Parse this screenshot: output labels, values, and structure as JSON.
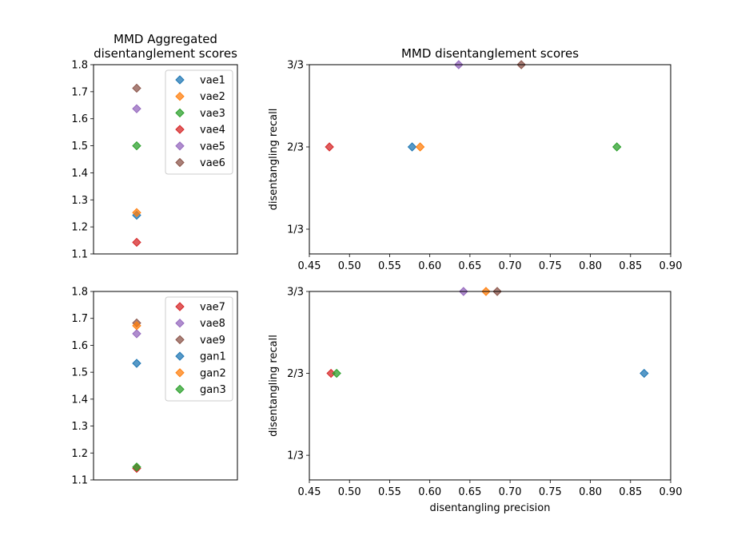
{
  "chart_data": [
    {
      "type": "scatter",
      "title": [
        "MMD Aggregated",
        "disentanglement scores"
      ],
      "xlabel": "",
      "ylabel": "",
      "ylim": [
        1.1,
        1.8
      ],
      "yticks": [
        1.1,
        1.2,
        1.3,
        1.4,
        1.5,
        1.6,
        1.7,
        1.8
      ],
      "ytick_labels": [
        "1.1",
        "1.2",
        "1.3",
        "1.4",
        "1.5",
        "1.6",
        "1.7",
        "1.8"
      ],
      "grid": false,
      "legend_position": "upper right",
      "series": [
        {
          "name": "vae1",
          "color": "#1f77b4",
          "x": [
            0
          ],
          "y": [
            1.243
          ]
        },
        {
          "name": "vae2",
          "color": "#ff7f0e",
          "x": [
            0
          ],
          "y": [
            1.253
          ]
        },
        {
          "name": "vae3",
          "color": "#2ca02c",
          "x": [
            0
          ],
          "y": [
            1.5
          ]
        },
        {
          "name": "vae4",
          "color": "#d62728",
          "x": [
            0
          ],
          "y": [
            1.143
          ]
        },
        {
          "name": "vae5",
          "color": "#9467bd",
          "x": [
            0
          ],
          "y": [
            1.637
          ]
        },
        {
          "name": "vae6",
          "color": "#8c564b",
          "x": [
            0
          ],
          "y": [
            1.713
          ]
        }
      ]
    },
    {
      "type": "scatter",
      "title": "MMD disentanglement scores",
      "xlabel": "",
      "ylabel": "disentangling recall",
      "xlim": [
        0.45,
        0.9
      ],
      "xticks": [
        0.45,
        0.5,
        0.55,
        0.6,
        0.65,
        0.7,
        0.75,
        0.8,
        0.85,
        0.9
      ],
      "xtick_labels": [
        "0.45",
        "0.50",
        "0.55",
        "0.60",
        "0.65",
        "0.70",
        "0.75",
        "0.80",
        "0.85",
        "0.90"
      ],
      "ylim": [
        0.233,
        1.0
      ],
      "yticks": [
        0.3333,
        0.6667,
        1.0
      ],
      "ytick_labels": [
        "1/3",
        "2/3",
        "3/3"
      ],
      "grid": false,
      "series": [
        {
          "name": "vae1",
          "color": "#1f77b4",
          "x": [
            0.578
          ],
          "y": [
            0.6667
          ]
        },
        {
          "name": "vae2",
          "color": "#ff7f0e",
          "x": [
            0.588
          ],
          "y": [
            0.6667
          ]
        },
        {
          "name": "vae3",
          "color": "#2ca02c",
          "x": [
            0.833
          ],
          "y": [
            0.6667
          ]
        },
        {
          "name": "vae4",
          "color": "#d62728",
          "x": [
            0.475
          ],
          "y": [
            0.6667
          ]
        },
        {
          "name": "vae5",
          "color": "#9467bd",
          "x": [
            0.636
          ],
          "y": [
            1.0
          ]
        },
        {
          "name": "vae6",
          "color": "#8c564b",
          "x": [
            0.714
          ],
          "y": [
            1.0
          ]
        }
      ]
    },
    {
      "type": "scatter",
      "title": "",
      "xlabel": "",
      "ylabel": "",
      "ylim": [
        1.1,
        1.8
      ],
      "yticks": [
        1.1,
        1.2,
        1.3,
        1.4,
        1.5,
        1.6,
        1.7,
        1.8
      ],
      "ytick_labels": [
        "1.1",
        "1.2",
        "1.3",
        "1.4",
        "1.5",
        "1.6",
        "1.7",
        "1.8"
      ],
      "grid": false,
      "legend_position": "upper right",
      "series": [
        {
          "name": "vae7",
          "color": "#d62728",
          "x": [
            0
          ],
          "y": [
            1.143
          ]
        },
        {
          "name": "vae8",
          "color": "#9467bd",
          "x": [
            0
          ],
          "y": [
            1.643
          ]
        },
        {
          "name": "vae9",
          "color": "#8c564b",
          "x": [
            0
          ],
          "y": [
            1.683
          ]
        },
        {
          "name": "gan1",
          "color": "#1f77b4",
          "x": [
            0
          ],
          "y": [
            1.533
          ]
        },
        {
          "name": "gan2",
          "color": "#ff7f0e",
          "x": [
            0
          ],
          "y": [
            1.673
          ]
        },
        {
          "name": "gan3",
          "color": "#2ca02c",
          "x": [
            0
          ],
          "y": [
            1.148
          ]
        }
      ]
    },
    {
      "type": "scatter",
      "title": "",
      "xlabel": "disentangling precision",
      "ylabel": "disentangling recall",
      "xlim": [
        0.45,
        0.9
      ],
      "xticks": [
        0.45,
        0.5,
        0.55,
        0.6,
        0.65,
        0.7,
        0.75,
        0.8,
        0.85,
        0.9
      ],
      "xtick_labels": [
        "0.45",
        "0.50",
        "0.55",
        "0.60",
        "0.65",
        "0.70",
        "0.75",
        "0.80",
        "0.85",
        "0.90"
      ],
      "ylim": [
        0.233,
        1.0
      ],
      "yticks": [
        0.3333,
        0.6667,
        1.0
      ],
      "ytick_labels": [
        "1/3",
        "2/3",
        "3/3"
      ],
      "grid": false,
      "series": [
        {
          "name": "vae7",
          "color": "#d62728",
          "x": [
            0.477
          ],
          "y": [
            0.6667
          ]
        },
        {
          "name": "vae8",
          "color": "#9467bd",
          "x": [
            0.642
          ],
          "y": [
            1.0
          ]
        },
        {
          "name": "vae9",
          "color": "#8c564b",
          "x": [
            0.684
          ],
          "y": [
            1.0
          ]
        },
        {
          "name": "gan1",
          "color": "#1f77b4",
          "x": [
            0.867
          ],
          "y": [
            0.6667
          ]
        },
        {
          "name": "gan2",
          "color": "#ff7f0e",
          "x": [
            0.67
          ],
          "y": [
            1.0
          ]
        },
        {
          "name": "gan3",
          "color": "#2ca02c",
          "x": [
            0.484
          ],
          "y": [
            0.6667
          ]
        }
      ]
    }
  ]
}
